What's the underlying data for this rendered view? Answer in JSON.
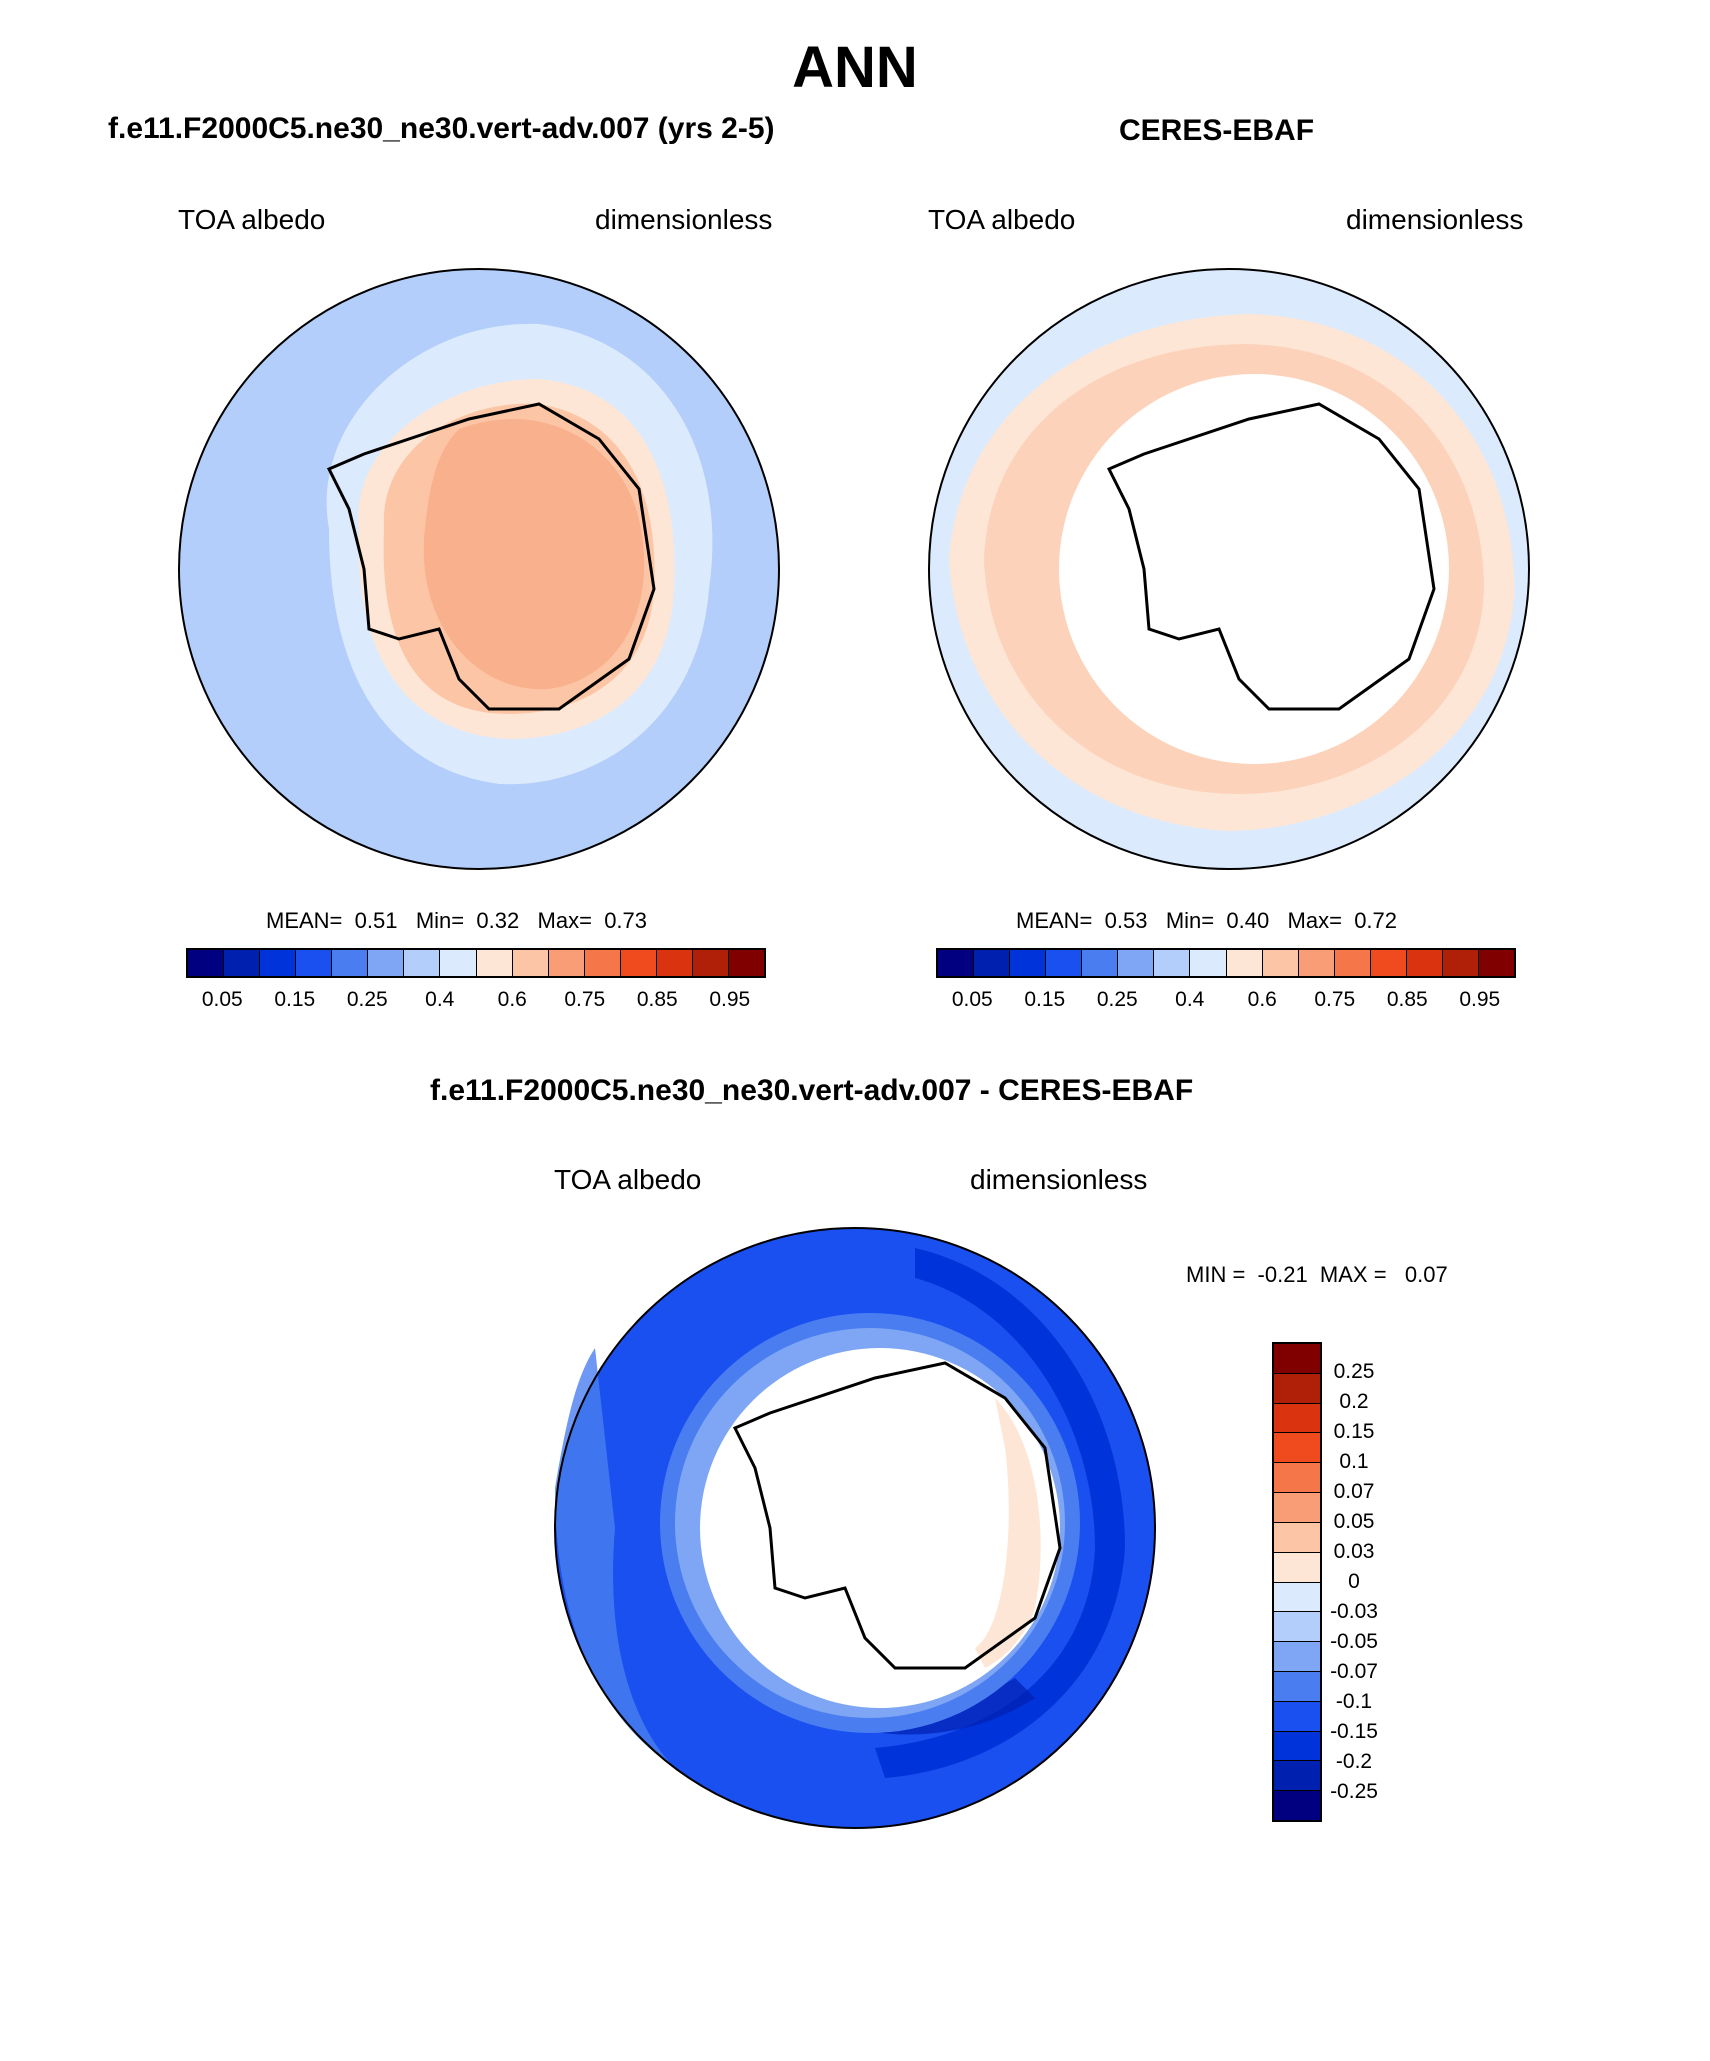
{
  "main_title": "ANN",
  "panels": [
    {
      "title": "f.e11.F2000C5.ne30_ne30.vert-adv.007 (yrs 2-5)",
      "left_label": "TOA albedo",
      "right_label": "dimensionless",
      "mean_label": "MEAN=",
      "mean": "0.51",
      "min_label": "Min=",
      "min": "0.32",
      "max_label": "Max=",
      "max": "0.73"
    },
    {
      "title": "CERES-EBAF",
      "left_label": "TOA albedo",
      "right_label": "dimensionless",
      "mean_label": "MEAN=",
      "mean": "0.53",
      "min_label": "Min=",
      "min": "0.40",
      "max_label": "Max=",
      "max": "0.72"
    }
  ],
  "diff_panel": {
    "title": "f.e11.F2000C5.ne30_ne30.vert-adv.007 - CERES-EBAF",
    "left_label": "TOA albedo",
    "right_label": "dimensionless",
    "min_label": "MIN =",
    "min": "-0.21",
    "max_label": "MAX =",
    "max": "0.07"
  },
  "abs_colorbar": {
    "colors": [
      "#000080",
      "#0020b0",
      "#0033d9",
      "#1a4ff0",
      "#4a7ef0",
      "#7ea6f5",
      "#b3cefa",
      "#dbeafc",
      "#fde6d6",
      "#fcc6a6",
      "#f99d77",
      "#f57649",
      "#f04b1e",
      "#d9330f",
      "#b02008",
      "#800000"
    ],
    "tick_labels": [
      "0.05",
      "0.15",
      "0.25",
      "0.4",
      "0.6",
      "0.75",
      "0.85",
      "0.95"
    ]
  },
  "diff_colorbar": {
    "colors": [
      "#800000",
      "#b02008",
      "#d9330f",
      "#f04b1e",
      "#f57649",
      "#f99d77",
      "#fcc6a6",
      "#fde6d6",
      "#dbeafc",
      "#b3cefa",
      "#7ea6f5",
      "#4a7ef0",
      "#1a4ff0",
      "#0033d9",
      "#0020b0",
      "#000080"
    ],
    "tick_labels": [
      "0.25",
      "0.2",
      "0.15",
      "0.1",
      "0.07",
      "0.05",
      "0.03",
      "0",
      "-0.03",
      "-0.05",
      "-0.07",
      "-0.1",
      "-0.15",
      "-0.2",
      "-0.25"
    ]
  },
  "map_colors": {
    "ocean_far": "#b3cefa",
    "ocean_mid": "#dbeafc",
    "sea_ice": "#fde6d6",
    "ice_edge": "#fcc6a6",
    "plateau": "#f9b08c",
    "missing": "#ffffff",
    "diff_outer": "#1a4ff0",
    "diff_band": "#0033d9",
    "diff_inner": "#4a7ef0"
  }
}
